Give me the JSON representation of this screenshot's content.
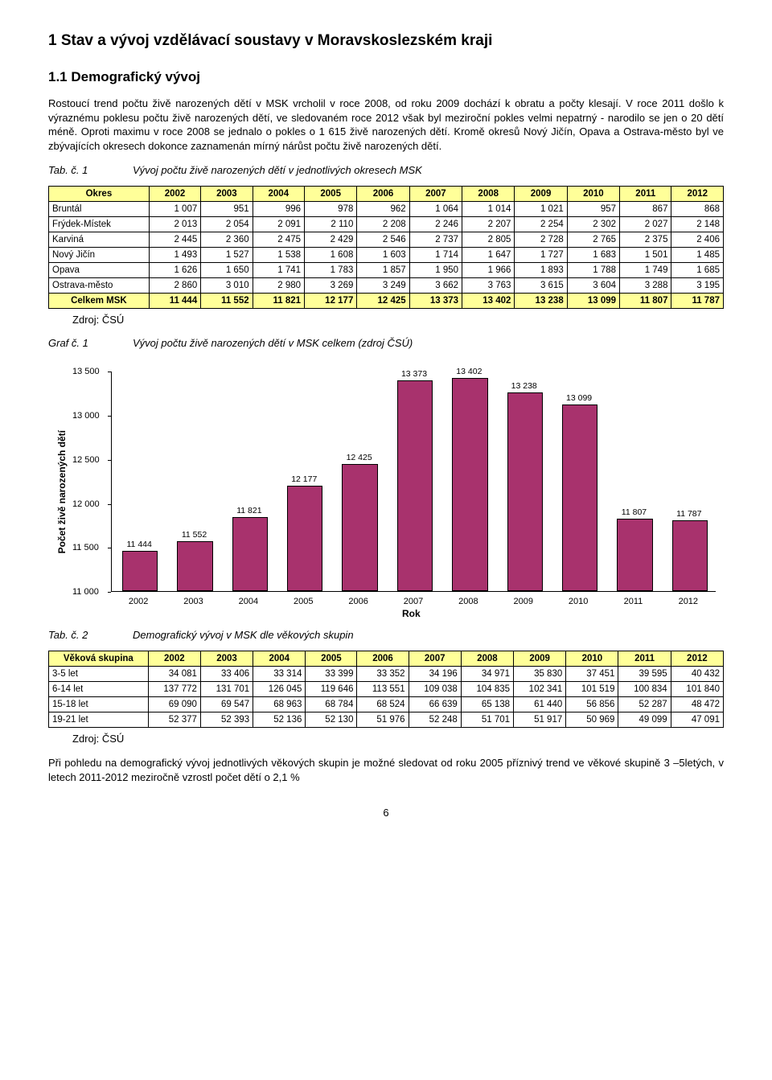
{
  "heading1": "1  Stav a vývoj vzdělávací soustavy v Moravskoslezském kraji",
  "heading2": "1.1 Demografický vývoj",
  "para1": "Rostoucí trend počtu živě narozených dětí v MSK vrcholil v roce 2008, od roku 2009 dochází k obratu a počty klesají. V roce 2011 došlo k výraznému poklesu počtu živě narozených dětí, ve sledovaném roce 2012 však byl meziroční pokles velmi nepatrný - narodilo se jen o 20 dětí méně. Oproti maximu v roce 2008 se jednalo o pokles o 1 615 živě narozených dětí. Kromě okresů Nový Jičín, Opava a Ostrava-město byl ve zbývajících okresech dokonce zaznamenán mírný nárůst počtu živě narozených dětí.",
  "tab1": {
    "label": "Tab. č. 1",
    "desc": "Vývoj počtu živě narozených dětí v jednotlivých okresech MSK",
    "header_first": "Okres",
    "years": [
      "2002",
      "2003",
      "2004",
      "2005",
      "2006",
      "2007",
      "2008",
      "2009",
      "2010",
      "2011",
      "2012"
    ],
    "rows": [
      {
        "label": "Bruntál",
        "vals": [
          "1 007",
          "951",
          "996",
          "978",
          "962",
          "1 064",
          "1 014",
          "1 021",
          "957",
          "867",
          "868"
        ]
      },
      {
        "label": "Frýdek-Místek",
        "vals": [
          "2 013",
          "2 054",
          "2 091",
          "2 110",
          "2 208",
          "2 246",
          "2 207",
          "2 254",
          "2 302",
          "2 027",
          "2 148"
        ]
      },
      {
        "label": "Karviná",
        "vals": [
          "2 445",
          "2 360",
          "2 475",
          "2 429",
          "2 546",
          "2 737",
          "2 805",
          "2 728",
          "2 765",
          "2 375",
          "2 406"
        ]
      },
      {
        "label": "Nový Jičín",
        "vals": [
          "1 493",
          "1 527",
          "1 538",
          "1 608",
          "1 603",
          "1 714",
          "1 647",
          "1 727",
          "1 683",
          "1 501",
          "1 485"
        ]
      },
      {
        "label": "Opava",
        "vals": [
          "1 626",
          "1 650",
          "1 741",
          "1 783",
          "1 857",
          "1 950",
          "1 966",
          "1 893",
          "1 788",
          "1 749",
          "1 685"
        ]
      },
      {
        "label": "Ostrava-město",
        "vals": [
          "2 860",
          "3 010",
          "2 980",
          "3 269",
          "3 249",
          "3 662",
          "3 763",
          "3 615",
          "3 604",
          "3 288",
          "3 195"
        ]
      }
    ],
    "total": {
      "label": "Celkem MSK",
      "vals": [
        "11 444",
        "11 552",
        "11 821",
        "12 177",
        "12 425",
        "13 373",
        "13 402",
        "13 238",
        "13 099",
        "11 807",
        "11 787"
      ]
    }
  },
  "source": "Zdroj: ČSÚ",
  "graf1": {
    "label": "Graf č. 1",
    "desc": "Vývoj počtu živě narozených dětí v MSK celkem (zdroj ČSÚ)"
  },
  "chart": {
    "type": "bar",
    "ylabel": "Počet živě narozených dětí",
    "xlabel": "Rok",
    "categories": [
      "2002",
      "2003",
      "2004",
      "2005",
      "2006",
      "2007",
      "2008",
      "2009",
      "2010",
      "2011",
      "2012"
    ],
    "values": [
      11444,
      11552,
      11821,
      12177,
      12425,
      13373,
      13402,
      13238,
      13099,
      11807,
      11787
    ],
    "value_labels": [
      "11 444",
      "11 552",
      "11 821",
      "12 177",
      "12 425",
      "13 373",
      "13 402",
      "13 238",
      "13 099",
      "11 807",
      "11 787"
    ],
    "ylim": [
      11000,
      13500
    ],
    "ytick_step": 500,
    "yticks": [
      "11 000",
      "11 500",
      "12 000",
      "12 500",
      "13 000",
      "13 500"
    ],
    "bar_color": "#a8326d",
    "bar_border": "#000000",
    "background_color": "#ffffff",
    "axis_color": "#000000",
    "label_fontsize": 11,
    "bar_width_ratio": 0.62
  },
  "tab2": {
    "label": "Tab. č. 2",
    "desc": "Demografický vývoj v MSK dle věkových skupin",
    "header_first": "Věková skupina",
    "years": [
      "2002",
      "2003",
      "2004",
      "2005",
      "2006",
      "2007",
      "2008",
      "2009",
      "2010",
      "2011",
      "2012"
    ],
    "rows": [
      {
        "label": "3-5 let",
        "vals": [
          "34 081",
          "33 406",
          "33 314",
          "33 399",
          "33 352",
          "34 196",
          "34 971",
          "35 830",
          "37 451",
          "39 595",
          "40 432"
        ]
      },
      {
        "label": "6-14 let",
        "vals": [
          "137 772",
          "131 701",
          "126 045",
          "119 646",
          "113 551",
          "109 038",
          "104 835",
          "102 341",
          "101 519",
          "100 834",
          "101 840"
        ]
      },
      {
        "label": "15-18 let",
        "vals": [
          "69 090",
          "69 547",
          "68 963",
          "68 784",
          "68 524",
          "66 639",
          "65 138",
          "61 440",
          "56 856",
          "52 287",
          "48 472"
        ]
      },
      {
        "label": "19-21 let",
        "vals": [
          "52 377",
          "52 393",
          "52 136",
          "52 130",
          "51 976",
          "52 248",
          "51 701",
          "51 917",
          "50 969",
          "49 099",
          "47 091"
        ]
      }
    ]
  },
  "para2": "Při pohledu na demografický vývoj jednotlivých věkových skupin je možné sledovat od roku 2005 příznivý trend ve věkové skupině 3 –5letých, v letech 2011-2012 meziročně vzrostl počet dětí o 2,1 %",
  "pagenum": "6"
}
